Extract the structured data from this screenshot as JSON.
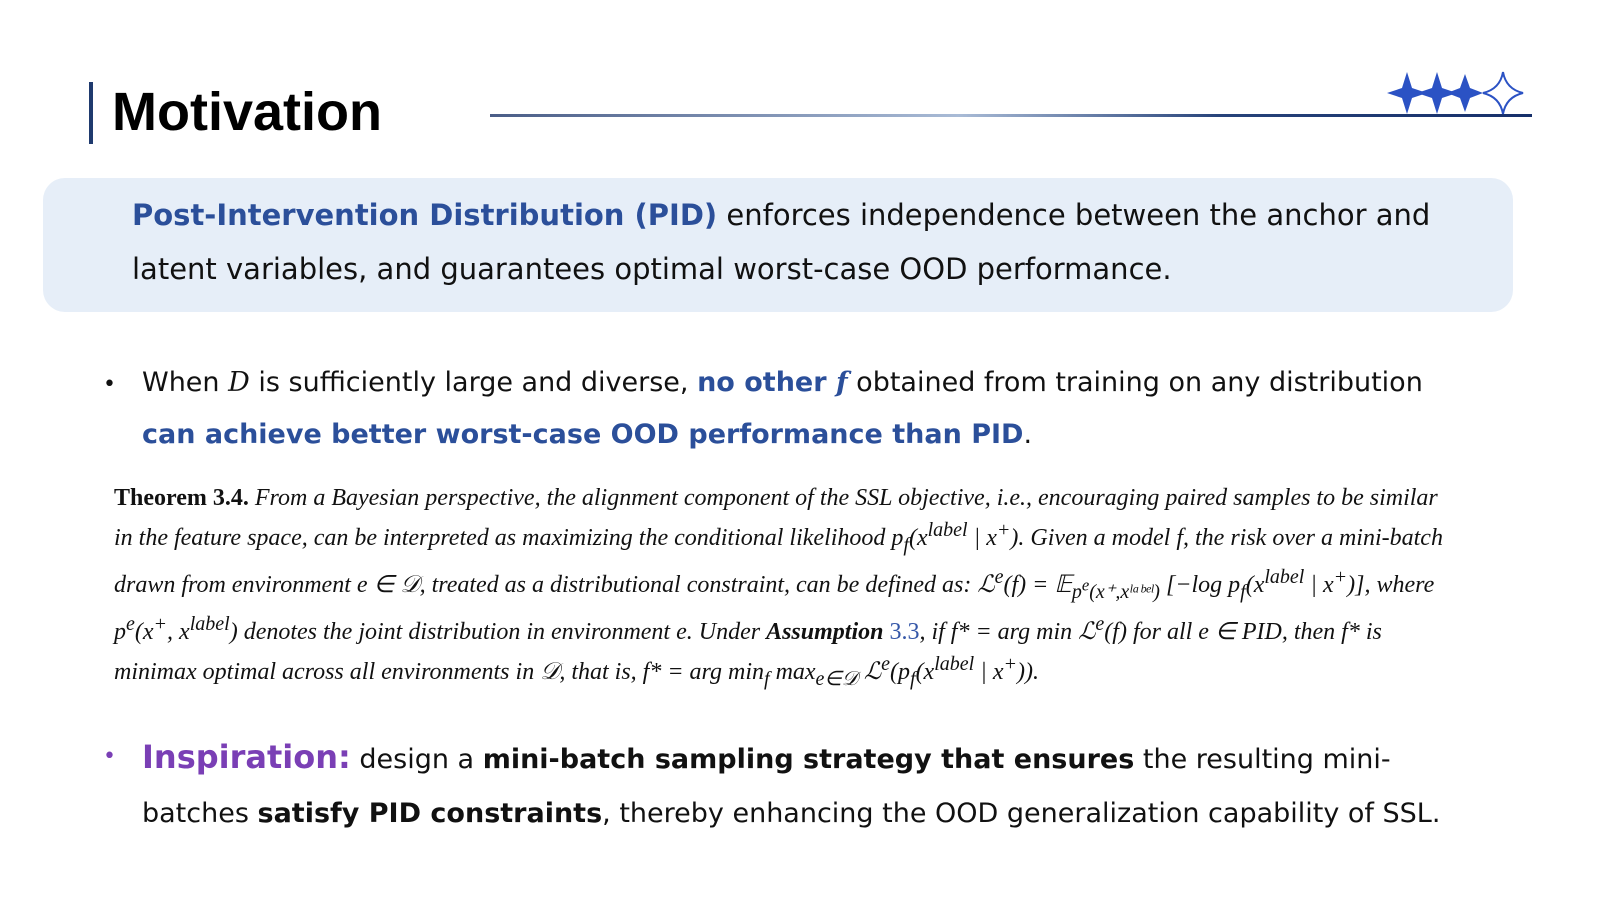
{
  "slide": {
    "title": "Motivation",
    "icons": [
      "star-icon",
      "star-icon",
      "star-icon",
      "star-outline-icon"
    ],
    "colors": {
      "accent_blue": "#2b4f9a",
      "accent_purple": "#7a3fb5",
      "box_bg": "#e6eef8"
    }
  },
  "summary": {
    "highlight": "Post-Intervention Distribution (PID)",
    "text": " enforces independence between the anchor and latent variables, and guarantees optimal worst-case OOD performance."
  },
  "bullet1": {
    "p1": "When ",
    "D": "D",
    "p2": " is sufficiently large and diverse, ",
    "hl1": "no other ",
    "f": "f",
    "p3": " obtained from training on any distribution ",
    "hl2": "can achieve better worst-case OOD performance than PID",
    "p4": "."
  },
  "theorem": {
    "head": "Theorem 3.4.",
    "s1": " From a Bayesian perspective, the alignment component of the SSL objective, i.e., encouraging paired samples to be similar in the feature space, can be interpreted as maximizing the conditional likelihood p",
    "s1sub": "f",
    "s1b": "(x",
    "s1sup": "label",
    "s1c": " | x",
    "s1sup2": "+",
    "s1d": "). Given a model f, the risk over a mini-batch drawn from environment e ∈ 𝒟, treated as a distributional constraint, can be defined as: ",
    "s2": "ℒ",
    "s2sup": "e",
    "s2b": "(f) = 𝔼",
    "s2sub": "p",
    "s2subsup": "e",
    "s2subrest": "(x⁺,xˡᵃᵇᵉˡ)",
    "s2c": " [−log p",
    "s2sub2": "f",
    "s2d": "(x",
    "s2sup2": "label",
    "s2e": " | x",
    "s2sup3": "+",
    "s2f": ")], where p",
    "s2sup4": "e",
    "s2g": "(x",
    "s2sup5": "+",
    "s2h": ", x",
    "s2sup6": "label",
    "s2i": ") denotes the joint distribution in environment e. Under ",
    "asm": "Assumption",
    "ref": " 3.3",
    "s3": ", if f* = arg min ℒ",
    "s3sup": "e",
    "s3b": "(f) for all e ∈ PID, then f* is minimax optimal across all environments in 𝒟, that is, f* = arg min",
    "s3sub": "f",
    "s3c": " max",
    "s3sub2": "e∈𝒟",
    "s3d": " ℒ",
    "s3sup2": "e",
    "s3e": "(p",
    "s3sub3": "f",
    "s3f": "(x",
    "s3sup3": "label",
    "s3g": " | x",
    "s3sup4": "+",
    "s3h": "))."
  },
  "bullet2": {
    "label": "Inspiration:",
    "p1": " design a ",
    "b1": "mini-batch sampling strategy that ensures",
    "p2": " the resulting mini-batches ",
    "b2": "satisfy PID constraints",
    "p3": ", thereby enhancing the OOD generalization capability of SSL."
  }
}
